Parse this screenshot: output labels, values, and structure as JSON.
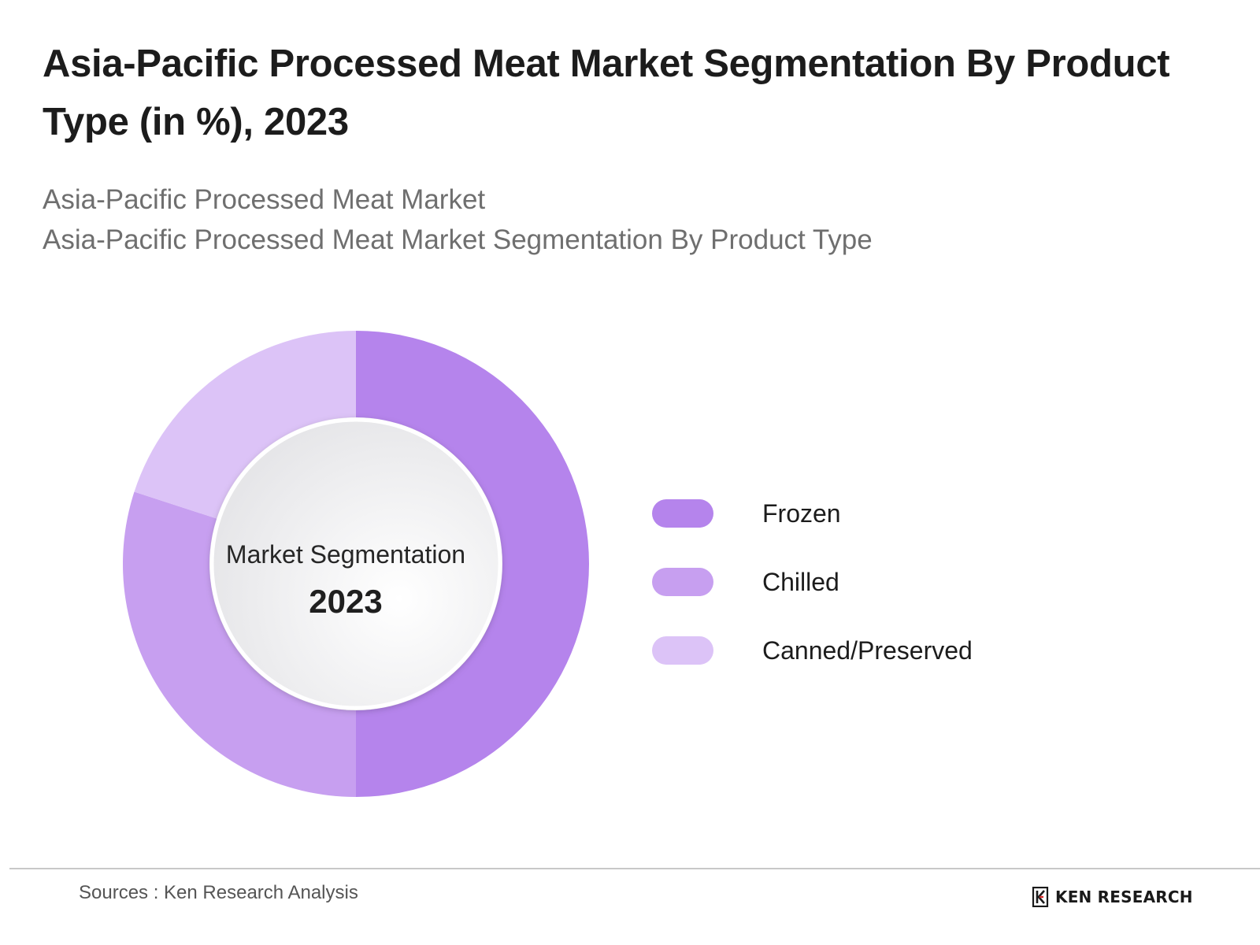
{
  "title": "Asia-Pacific Processed Meat Market Segmentation By Product Type (in %), 2023",
  "subtitle_1": "Asia-Pacific Processed Meat Market",
  "subtitle_2": "Asia-Pacific Processed Meat Market Segmentation By Product Type",
  "center_label": "Market Segmentation",
  "center_year": "2023",
  "source": "Sources : Ken Research Analysis",
  "brand": {
    "name": "KEN RESEARCH",
    "icon": "ken-research-logo-icon"
  },
  "chart_data": {
    "type": "pie",
    "variant": "donut",
    "categories": [
      "Frozen",
      "Chilled",
      "Canned/Preserved"
    ],
    "values": [
      50,
      30,
      20
    ],
    "colors": [
      "#b584ec",
      "#c79ff0",
      "#dcc3f7"
    ],
    "legend_position": "right"
  }
}
